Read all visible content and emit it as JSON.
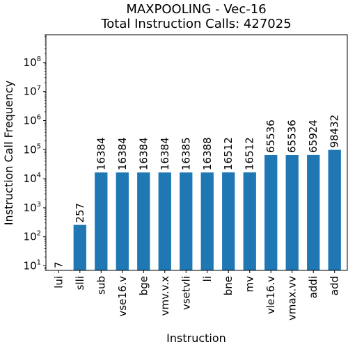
{
  "chart_data": {
    "type": "bar",
    "title": "MAXPOOLING - Vec-16",
    "subtitle": "Total Instruction Calls: 427025",
    "xlabel": "Instruction",
    "ylabel": "Instruction Call Frequency",
    "yscale": "log",
    "ylim": [
      7,
      900000000
    ],
    "y_ticks": [
      {
        "value": 10,
        "base": "10",
        "exp": "1"
      },
      {
        "value": 100,
        "base": "10",
        "exp": "2"
      },
      {
        "value": 1000,
        "base": "10",
        "exp": "3"
      },
      {
        "value": 10000,
        "base": "10",
        "exp": "4"
      },
      {
        "value": 100000,
        "base": "10",
        "exp": "5"
      },
      {
        "value": 1000000,
        "base": "10",
        "exp": "6"
      },
      {
        "value": 10000000,
        "base": "10",
        "exp": "7"
      },
      {
        "value": 100000000,
        "base": "10",
        "exp": "8"
      }
    ],
    "categories": [
      "lui",
      "slli",
      "sub",
      "vse16.v",
      "bge",
      "vmv.v.x",
      "vsetvli",
      "li",
      "bne",
      "mv",
      "vle16.v",
      "vmax.vv",
      "addi",
      "add"
    ],
    "values": [
      7,
      257,
      16384,
      16384,
      16384,
      16384,
      16385,
      16388,
      16512,
      16512,
      65536,
      65536,
      65924,
      98432
    ],
    "bar_color": "#1f77b4",
    "grid": false,
    "legend": "none"
  }
}
